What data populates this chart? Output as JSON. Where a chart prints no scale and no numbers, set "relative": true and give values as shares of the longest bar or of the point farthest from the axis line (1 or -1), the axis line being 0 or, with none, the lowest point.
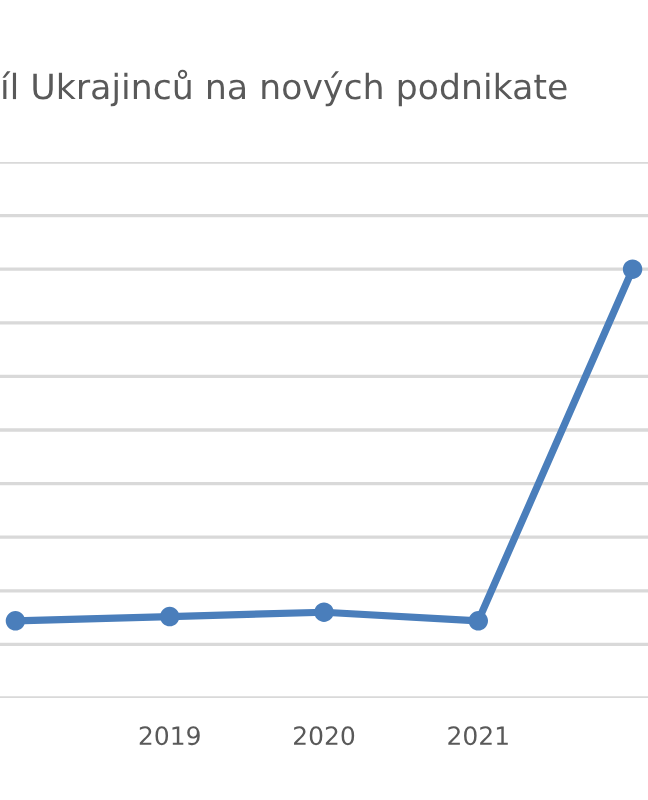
{
  "chart_data": {
    "type": "line",
    "title": "íl Ukrajinců na nových podnikate",
    "categories": [
      null,
      "2019",
      "2020",
      "2021",
      null
    ],
    "series": [
      {
        "color": "#4a7ebb",
        "values": [
          0.18,
          0.19,
          0.2,
          0.18,
          1
        ]
      }
    ],
    "relative": true,
    "grid": "y",
    "marker": "circle",
    "line_style": "solid",
    "legend": false,
    "tick_labels": "x"
  }
}
